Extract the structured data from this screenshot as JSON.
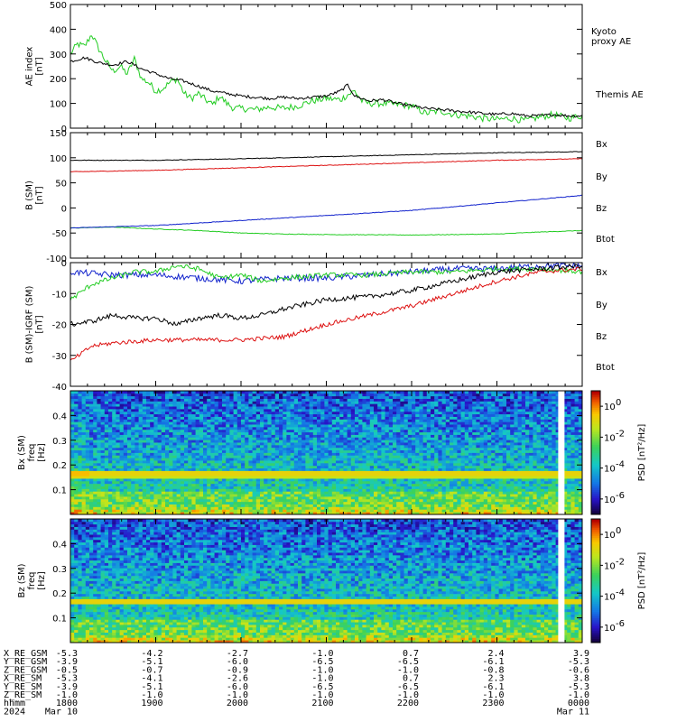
{
  "chart_data": [
    {
      "type": "line",
      "ylabel_lines": [
        "AE index",
        "[nT]"
      ],
      "ylim": [
        0,
        500
      ],
      "yticks": [
        "0",
        "100",
        "200",
        "300",
        "400",
        "500"
      ],
      "xlim": [
        1800,
        2400
      ],
      "series": [
        {
          "name": "Kyoto proxy AE",
          "legend_lines": [
            "Kyoto",
            "proxy AE"
          ],
          "color": "#22cc22",
          "x": [
            1800,
            1805,
            1810,
            1815,
            1820,
            1825,
            1830,
            1835,
            1840,
            1845,
            1850,
            1855,
            1900,
            1905,
            1910,
            1915,
            1920,
            1925,
            1930,
            1935,
            1940,
            1945,
            1950,
            1955,
            2000,
            2010,
            2020,
            2030,
            2040,
            2050,
            2100,
            2110,
            2115,
            2120,
            2125,
            2130,
            2140,
            2150,
            2200,
            2210,
            2220,
            2230,
            2240,
            2250,
            2300,
            2310,
            2320,
            2330,
            2340,
            2350,
            2400
          ],
          "y": [
            300,
            340,
            330,
            380,
            320,
            270,
            230,
            250,
            220,
            280,
            200,
            185,
            150,
            160,
            185,
            200,
            140,
            120,
            140,
            115,
            95,
            130,
            100,
            80,
            80,
            75,
            85,
            80,
            90,
            110,
            120,
            115,
            135,
            150,
            110,
            100,
            100,
            95,
            90,
            60,
            70,
            55,
            50,
            40,
            35,
            40,
            30,
            45,
            55,
            40,
            50
          ]
        },
        {
          "name": "Themis AE",
          "legend_lines": [
            "Themis AE"
          ],
          "color": "#000000",
          "x": [
            1800,
            1810,
            1820,
            1830,
            1840,
            1850,
            1900,
            1910,
            1920,
            1930,
            1940,
            1950,
            2000,
            2010,
            2020,
            2030,
            2040,
            2050,
            2100,
            2105,
            2110,
            2115,
            2120,
            2130,
            2140,
            2150,
            2200,
            2210,
            2220,
            2230,
            2240,
            2250,
            2300,
            2310,
            2320,
            2330,
            2340,
            2350,
            2400
          ],
          "y": [
            270,
            285,
            265,
            255,
            270,
            240,
            220,
            200,
            190,
            170,
            150,
            140,
            130,
            125,
            120,
            125,
            120,
            125,
            130,
            140,
            150,
            175,
            130,
            110,
            115,
            100,
            90,
            80,
            75,
            70,
            65,
            60,
            55,
            60,
            50,
            50,
            55,
            50,
            50
          ]
        }
      ]
    },
    {
      "type": "line",
      "ylabel_lines": [
        "B (SM)",
        "[nT]"
      ],
      "ylim": [
        -100,
        150
      ],
      "yticks": [
        "-100",
        "-50",
        "0",
        "50",
        "100",
        "150"
      ],
      "xlim": [
        1800,
        2400
      ],
      "series": [
        {
          "name": "Bx",
          "color": "#000000",
          "x": [
            1800,
            1900,
            2000,
            2100,
            2200,
            2300,
            2400
          ],
          "y": [
            95,
            95,
            98,
            102,
            106,
            110,
            112
          ]
        },
        {
          "name": "By",
          "color": "#22cc22",
          "x": [
            1800,
            1830,
            1900,
            1930,
            2000,
            2030,
            2100,
            2200,
            2300,
            2330,
            2400
          ],
          "y": [
            -40,
            -38,
            -42,
            -45,
            -50,
            -52,
            -53,
            -54,
            -52,
            -48,
            -45
          ]
        },
        {
          "name": "Bz",
          "color": "#dd1111",
          "x": [
            1800,
            1900,
            2000,
            2100,
            2200,
            2300,
            2400
          ],
          "y": [
            72,
            75,
            80,
            85,
            90,
            95,
            98
          ]
        },
        {
          "name": "Btot",
          "color": "#1122cc",
          "x": [
            1800,
            1900,
            2000,
            2100,
            2200,
            2300,
            2400
          ],
          "y": [
            -40,
            -35,
            -25,
            -15,
            -5,
            10,
            25
          ]
        }
      ]
    },
    {
      "type": "line",
      "ylabel_lines": [
        "B (SM)-IGRF (SM)",
        "[nT]"
      ],
      "ylim": [
        -40,
        0
      ],
      "yticks": [
        "-40",
        "-30",
        "-20",
        "-10",
        "0"
      ],
      "xlim": [
        1800,
        2400
      ],
      "series": [
        {
          "name": "Bx",
          "color": "#1122cc",
          "x": [
            1800,
            1830,
            1900,
            1930,
            2000,
            2030,
            2100,
            2130,
            2200,
            2230,
            2300,
            2330,
            2400
          ],
          "y": [
            -3,
            -4,
            -4,
            -5,
            -6,
            -5,
            -5,
            -4,
            -3,
            -2,
            -2,
            -1,
            -1
          ]
        },
        {
          "name": "By",
          "color": "#22cc22",
          "x": [
            1800,
            1815,
            1830,
            1845,
            1900,
            1915,
            1930,
            1945,
            2000,
            2015,
            2030,
            2100,
            2130,
            2200,
            2230,
            2300,
            2330,
            2400
          ],
          "y": [
            -12,
            -7,
            -5,
            -3,
            -3,
            -1,
            -2,
            -5,
            -4,
            -6,
            -5,
            -4,
            -4,
            -3,
            -3,
            -2,
            -2,
            -3
          ]
        },
        {
          "name": "Bz",
          "color": "#dd1111",
          "x": [
            1800,
            1815,
            1830,
            1900,
            1930,
            2000,
            2030,
            2100,
            2130,
            2200,
            2230,
            2300,
            2330,
            2400
          ],
          "y": [
            -32,
            -27,
            -26,
            -25,
            -25,
            -25,
            -24,
            -20,
            -17,
            -14,
            -10,
            -6,
            -3,
            -2
          ]
        },
        {
          "name": "Btot",
          "color": "#000000",
          "x": [
            1800,
            1815,
            1830,
            1845,
            1900,
            1915,
            1930,
            1945,
            2000,
            2015,
            2030,
            2100,
            2130,
            2200,
            2230,
            2300,
            2330,
            2400
          ],
          "y": [
            -20,
            -19,
            -17,
            -18,
            -18,
            -20,
            -18,
            -17,
            -18,
            -17,
            -15,
            -12,
            -11,
            -9,
            -6,
            -3,
            -2,
            -1
          ]
        }
      ]
    },
    {
      "type": "heatmap",
      "component": "Bx",
      "ylabel_lines": [
        "Bx (SM)",
        "freq",
        "[Hz]"
      ],
      "ylim": [
        0,
        0.5
      ],
      "yticks": [
        "0.1",
        "0.2",
        "0.3",
        "0.4"
      ],
      "xlim": [
        1800,
        2400
      ],
      "data_gap_x": 2345,
      "colorbar_label": "PSD [nT²/Hz]",
      "colorbar_ticks": [
        "10",
        "10",
        "10",
        "10"
      ],
      "colorbar_exps": [
        "0",
        "-2",
        "-4",
        "-6"
      ],
      "log_range": [
        -7,
        1
      ]
    },
    {
      "type": "heatmap",
      "component": "Bz",
      "ylabel_lines": [
        "Bz (SM)",
        "freq",
        "[Hz]"
      ],
      "ylim": [
        0,
        0.5
      ],
      "yticks": [
        "0.1",
        "0.2",
        "0.3",
        "0.4"
      ],
      "xlim": [
        1800,
        2400
      ],
      "data_gap_x": 2345,
      "colorbar_label": "PSD [nT²/Hz]",
      "colorbar_ticks": [
        "10",
        "10",
        "10",
        "10"
      ],
      "colorbar_exps": [
        "0",
        "-2",
        "-4",
        "-6"
      ],
      "log_range": [
        -7,
        1
      ]
    }
  ],
  "ephemeris": {
    "rows": [
      {
        "label": "X_RE_GSM",
        "values": [
          "-5.3",
          "-4.2",
          "-2.7",
          "-1.0",
          "0.7",
          "2.4",
          "3.9"
        ]
      },
      {
        "label": "Y_RE_GSM",
        "values": [
          "-3.9",
          "-5.1",
          "-6.0",
          "-6.5",
          "-6.5",
          "-6.1",
          "-5.3"
        ]
      },
      {
        "label": "Z_RE_GSM",
        "values": [
          "-0.5",
          "-0.7",
          "-0.9",
          "-1.0",
          "-1.0",
          "-0.8",
          "-0.6"
        ]
      },
      {
        "label": "X_RE_SM",
        "values": [
          "-5.3",
          "-4.1",
          "-2.6",
          "-1.0",
          "0.7",
          "2.3",
          "3.8"
        ]
      },
      {
        "label": "Y_RE_SM",
        "values": [
          "-3.9",
          "-5.1",
          "-6.0",
          "-6.5",
          "-6.5",
          "-6.1",
          "-5.3"
        ]
      },
      {
        "label": "Z_RE_SM",
        "values": [
          "-1.0",
          "-1.0",
          "-1.0",
          "-1.0",
          "-1.0",
          "-1.0",
          "-1.0"
        ]
      }
    ],
    "time_label": "hhmm",
    "time_values": [
      "1800",
      "1900",
      "2000",
      "2100",
      "2200",
      "2300",
      "0000"
    ],
    "year_label": "2024",
    "date_start": "Mar 10",
    "date_end": "Mar 11"
  }
}
